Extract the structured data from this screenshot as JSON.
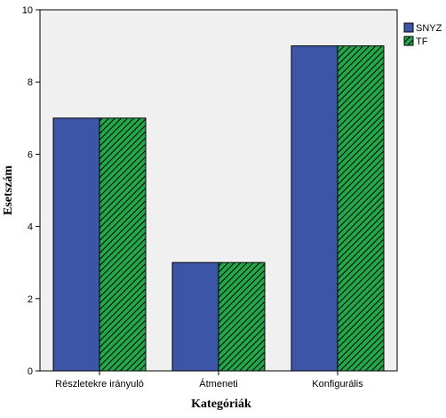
{
  "chart_data": {
    "type": "bar",
    "categories": [
      "Részletekre irányuló",
      "Átmeneti",
      "Konfigurális"
    ],
    "series": [
      {
        "name": "SNYZ",
        "values": [
          7,
          3,
          9
        ],
        "color": "#3d55a6",
        "pattern": "solid"
      },
      {
        "name": "TF",
        "values": [
          7,
          3,
          9
        ],
        "color": "#22a84a",
        "pattern": "diagonal-hatch"
      }
    ],
    "title": "",
    "xlabel": "Kategóriák",
    "ylabel": "Esetszám",
    "ylim": [
      0,
      10
    ],
    "yticks": [
      0,
      2,
      4,
      6,
      8,
      10
    ],
    "grid": false,
    "legend_position": "top-right",
    "plot_background": "#f0f0f0"
  }
}
